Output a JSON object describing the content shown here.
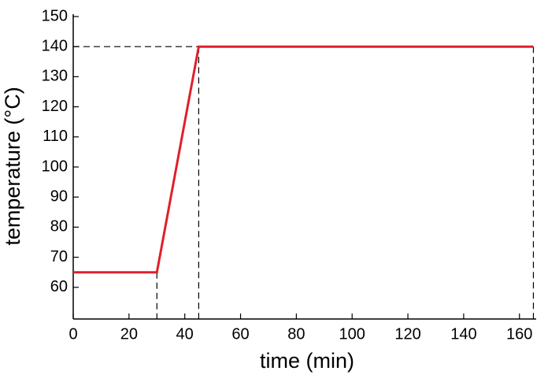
{
  "chart_data": {
    "type": "line",
    "x_label": "time (min)",
    "y_label": "temperature (°C)",
    "series": [
      {
        "color": "#e0202a",
        "x": [
          0,
          30,
          45,
          165
        ],
        "values": [
          65,
          65,
          140,
          140
        ]
      }
    ],
    "xlim": [
      0,
      166
    ],
    "xticks": [
      0,
      20,
      40,
      60,
      80,
      100,
      120,
      140,
      160
    ],
    "ylim": [
      50,
      150
    ],
    "yticks": [
      60,
      70,
      80,
      90,
      100,
      110,
      120,
      130,
      140,
      150
    ]
  }
}
